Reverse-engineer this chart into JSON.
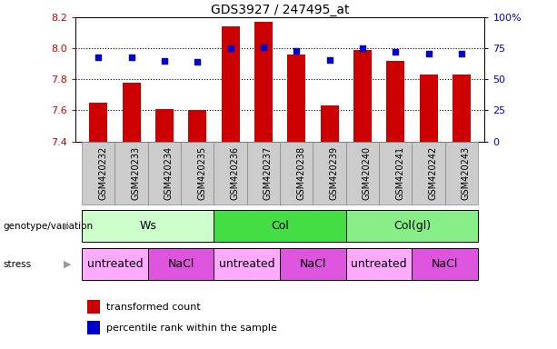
{
  "title": "GDS3927 / 247495_at",
  "samples": [
    "GSM420232",
    "GSM420233",
    "GSM420234",
    "GSM420235",
    "GSM420236",
    "GSM420237",
    "GSM420238",
    "GSM420239",
    "GSM420240",
    "GSM420241",
    "GSM420242",
    "GSM420243"
  ],
  "bar_values": [
    7.65,
    7.78,
    7.61,
    7.6,
    8.14,
    8.17,
    7.96,
    7.63,
    7.99,
    7.92,
    7.83,
    7.83
  ],
  "dot_values": [
    68,
    68,
    65,
    64,
    75,
    76,
    73,
    66,
    75,
    72,
    71,
    71
  ],
  "ylim": [
    7.4,
    8.2
  ],
  "y2lim": [
    0,
    100
  ],
  "yticks": [
    7.4,
    7.6,
    7.8,
    8.0,
    8.2
  ],
  "y2ticks": [
    0,
    25,
    50,
    75,
    100
  ],
  "bar_color": "#cc0000",
  "dot_color": "#0000cc",
  "bar_baseline": 7.4,
  "genotype_groups": [
    {
      "label": "Ws",
      "start": 0,
      "end": 4,
      "color": "#ccffcc"
    },
    {
      "label": "Col",
      "start": 4,
      "end": 8,
      "color": "#44dd44"
    },
    {
      "label": "Col(gl)",
      "start": 8,
      "end": 12,
      "color": "#88ee88"
    }
  ],
  "stress_groups": [
    {
      "label": "untreated",
      "start": 0,
      "end": 2,
      "color": "#ffaaff"
    },
    {
      "label": "NaCl",
      "start": 2,
      "end": 4,
      "color": "#dd55dd"
    },
    {
      "label": "untreated",
      "start": 4,
      "end": 6,
      "color": "#ffaaff"
    },
    {
      "label": "NaCl",
      "start": 6,
      "end": 8,
      "color": "#dd55dd"
    },
    {
      "label": "untreated",
      "start": 8,
      "end": 10,
      "color": "#ffaaff"
    },
    {
      "label": "NaCl",
      "start": 10,
      "end": 12,
      "color": "#dd55dd"
    }
  ],
  "legend_bar_label": "transformed count",
  "legend_dot_label": "percentile rank within the sample",
  "genotype_label": "genotype/variation",
  "stress_label": "stress",
  "ylabel_color": "#cc0000",
  "y2label_color": "#0000cc",
  "sample_bg_color": "#cccccc",
  "sample_border_color": "#888888"
}
